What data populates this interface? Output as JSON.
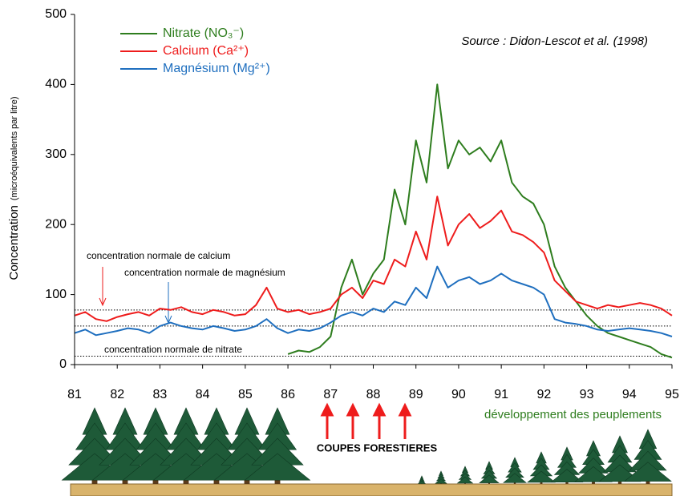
{
  "chart_data": {
    "type": "line",
    "source": "Source : Didon-Lescot et al. (1998)",
    "ylabel": "Concentration",
    "ylabel_unit": "(microéquivalents par litre)",
    "x": [
      81,
      81.25,
      81.5,
      81.75,
      82,
      82.25,
      82.5,
      82.75,
      83,
      83.25,
      83.5,
      83.75,
      84,
      84.25,
      84.5,
      84.75,
      85,
      85.25,
      85.5,
      85.75,
      86,
      86.25,
      86.5,
      86.75,
      87,
      87.25,
      87.5,
      87.75,
      88,
      88.25,
      88.5,
      88.75,
      89,
      89.25,
      89.5,
      89.75,
      90,
      90.25,
      90.5,
      90.75,
      91,
      91.25,
      91.5,
      91.75,
      92,
      92.25,
      92.5,
      92.75,
      93,
      93.25,
      93.5,
      93.75,
      94,
      94.25,
      94.5,
      94.75,
      95
    ],
    "series": [
      {
        "name": "Nitrate (NO₃⁻)",
        "color": "#2e7d1e",
        "values": [
          null,
          null,
          null,
          null,
          null,
          null,
          null,
          null,
          null,
          null,
          null,
          null,
          null,
          null,
          null,
          null,
          null,
          null,
          null,
          null,
          15,
          20,
          18,
          25,
          40,
          110,
          150,
          100,
          130,
          150,
          250,
          200,
          320,
          260,
          400,
          280,
          320,
          300,
          310,
          290,
          320,
          260,
          240,
          230,
          200,
          140,
          110,
          90,
          70,
          55,
          45,
          40,
          35,
          30,
          25,
          15,
          10
        ]
      },
      {
        "name": "Calcium (Ca²⁺)",
        "color": "#ee1c1c",
        "values": [
          70,
          75,
          65,
          62,
          68,
          72,
          75,
          70,
          80,
          78,
          82,
          75,
          72,
          78,
          75,
          70,
          72,
          85,
          110,
          80,
          75,
          78,
          72,
          75,
          80,
          100,
          110,
          95,
          120,
          115,
          150,
          140,
          190,
          150,
          240,
          170,
          200,
          215,
          195,
          205,
          220,
          190,
          185,
          175,
          160,
          120,
          105,
          90,
          85,
          80,
          85,
          82,
          85,
          88,
          85,
          80,
          70
        ]
      },
      {
        "name": "Magnésium (Mg²⁺)",
        "color": "#1f6fbf",
        "values": [
          45,
          50,
          42,
          45,
          48,
          52,
          50,
          45,
          55,
          60,
          55,
          52,
          50,
          55,
          52,
          48,
          50,
          55,
          65,
          52,
          45,
          50,
          48,
          52,
          60,
          70,
          75,
          70,
          80,
          75,
          90,
          85,
          110,
          95,
          140,
          110,
          120,
          125,
          115,
          120,
          130,
          120,
          115,
          110,
          100,
          65,
          60,
          58,
          55,
          50,
          48,
          50,
          52,
          50,
          48,
          45,
          40
        ]
      }
    ],
    "reference_lines": [
      {
        "label": "concentration normale de calcium",
        "value": 78
      },
      {
        "label": "concentration normale de magnésium",
        "value": 55
      },
      {
        "label": "concentration normale de nitrate",
        "value": 12
      }
    ],
    "cuts_label": "COUPES FORESTIERES",
    "regrowth_label": "développement des peuplements",
    "xlim": [
      81,
      95
    ],
    "ylim": [
      0,
      500
    ],
    "xticks": [
      81,
      82,
      83,
      84,
      85,
      86,
      87,
      88,
      89,
      90,
      91,
      92,
      93,
      94,
      95
    ],
    "yticks": [
      0,
      100,
      200,
      300,
      400,
      500
    ]
  }
}
